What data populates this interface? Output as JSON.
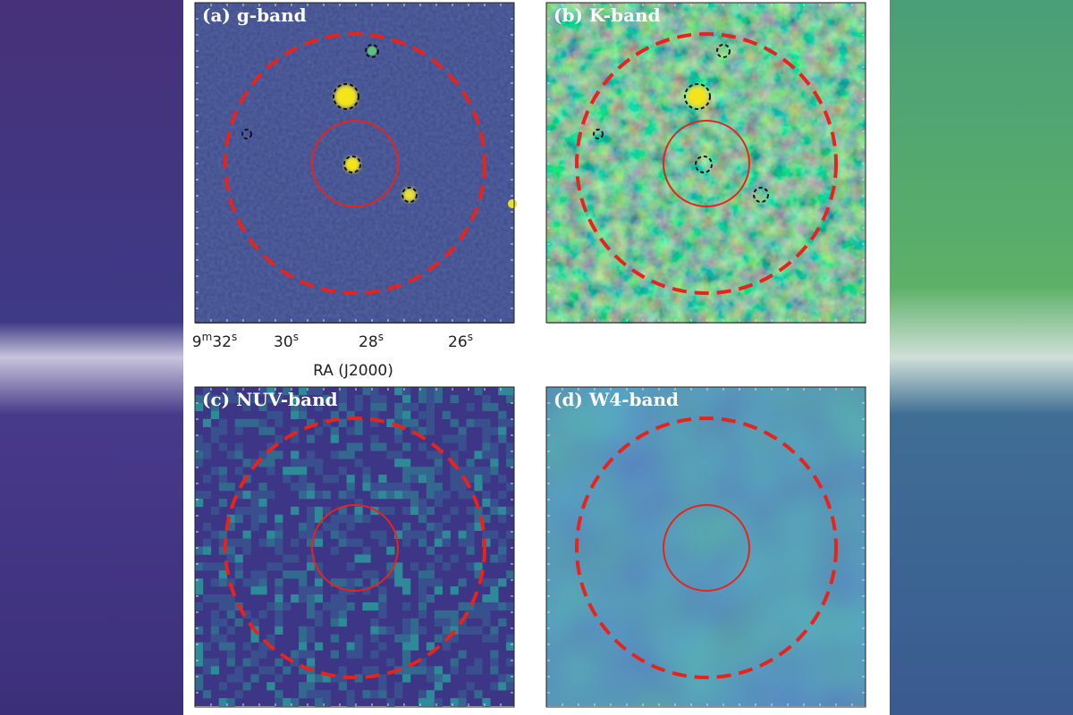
{
  "panels": [
    {
      "label": "(a) g-band"
    },
    {
      "label": "(b) K-band"
    },
    {
      "label": "(c) NUV-band"
    },
    {
      "label": "(d) W4-band"
    }
  ],
  "x_axis": {
    "ticks": [
      [
        "9",
        "m",
        "32",
        "s"
      ],
      [
        "30",
        "s"
      ],
      [
        "28",
        "s"
      ],
      [
        "26",
        "s"
      ]
    ],
    "label": "RA (J2000)"
  }
}
